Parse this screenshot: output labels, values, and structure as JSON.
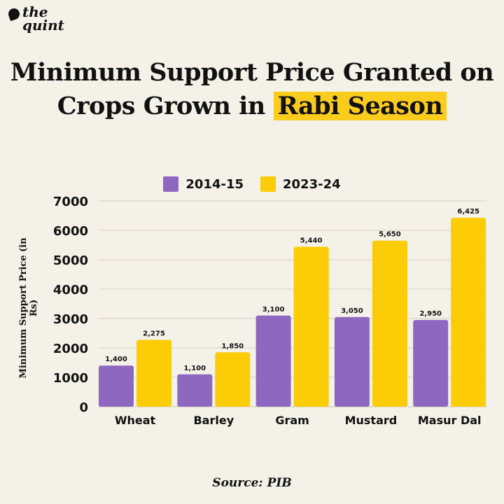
{
  "brand": {
    "logo_text": "the quint"
  },
  "title": {
    "line1": "Minimum Support Price Granted on",
    "line2_plain": "Crops Grown in",
    "line2_highlight": "Rabi Season"
  },
  "source": "Source: PIB",
  "colors": {
    "series1": "#8e68c0",
    "series2": "#fccc06",
    "highlight": "#fccc1c",
    "background": "#f4f1e8"
  },
  "chart_data": {
    "type": "bar",
    "title": "Minimum Support Price Granted on Crops Grown in Rabi Season",
    "xlabel": "",
    "ylabel": "Minimum Support Price (in Rs)",
    "ylim": [
      0,
      7000
    ],
    "yticks": [
      0,
      1000,
      2000,
      3000,
      4000,
      5000,
      6000,
      7000
    ],
    "grid": true,
    "legend_position": "top-center",
    "categories": [
      "Wheat",
      "Barley",
      "Gram",
      "Mustard",
      "Masur Dal"
    ],
    "series": [
      {
        "name": "2014-15",
        "values": [
          1400,
          1100,
          3100,
          3050,
          2950
        ],
        "labels": [
          "1,400",
          "1,100",
          "3,100",
          "3,050",
          "2,950"
        ]
      },
      {
        "name": "2023-24",
        "values": [
          2275,
          1850,
          5440,
          5650,
          6425
        ],
        "labels": [
          "2,275",
          "1,850",
          "5,440",
          "5,650",
          "6,425"
        ]
      }
    ]
  }
}
